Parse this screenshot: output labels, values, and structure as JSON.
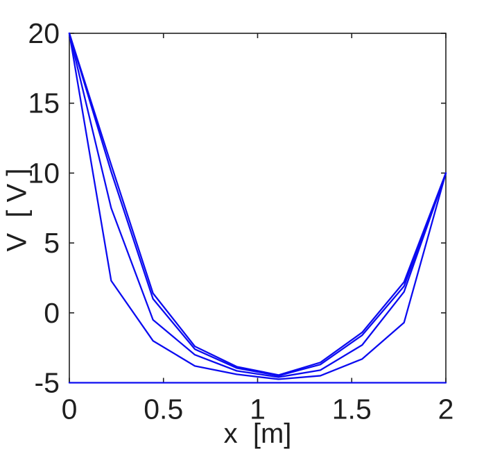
{
  "chart_data": {
    "type": "line",
    "title": "",
    "xlabel": "x  [m]",
    "ylabel": "V  [ V ]",
    "xlim": [
      0,
      2
    ],
    "ylim": [
      -5,
      20
    ],
    "grid": false,
    "legend": "none",
    "box": true,
    "axis_color": "#1f1f1f",
    "line_color": "#0b0bf0",
    "xticks": [
      0,
      0.5,
      1,
      1.5,
      2
    ],
    "xtick_labels": [
      "0",
      "0.5",
      "1",
      "1.5",
      "2"
    ],
    "yticks": [
      -5,
      0,
      5,
      10,
      15,
      20
    ],
    "ytick_labels": [
      "-5",
      "0",
      "5",
      "10",
      "15",
      "20"
    ],
    "x": [
      0,
      0.2222,
      0.4444,
      0.6667,
      0.8889,
      1.1111,
      1.3333,
      1.5556,
      1.7778,
      2.0
    ],
    "series": [
      {
        "name": "line-1",
        "values": [
          -5,
          -5,
          -5,
          -5,
          -5,
          -5,
          -5,
          -5,
          -5,
          -5
        ]
      },
      {
        "name": "line-2",
        "values": [
          20,
          2.3,
          -2.0,
          -3.8,
          -4.4,
          -4.75,
          -4.5,
          -3.3,
          -0.7,
          10
        ]
      },
      {
        "name": "line-3",
        "values": [
          20,
          7.5,
          -0.5,
          -3.0,
          -4.15,
          -4.6,
          -4.1,
          -2.3,
          1.5,
          10
        ]
      },
      {
        "name": "line-4",
        "values": [
          20,
          10.1,
          1.0,
          -2.6,
          -3.95,
          -4.5,
          -3.7,
          -1.6,
          1.9,
          10
        ]
      },
      {
        "name": "line-5",
        "values": [
          20,
          10.6,
          1.4,
          -2.4,
          -3.85,
          -4.45,
          -3.55,
          -1.4,
          2.2,
          10
        ]
      }
    ]
  }
}
